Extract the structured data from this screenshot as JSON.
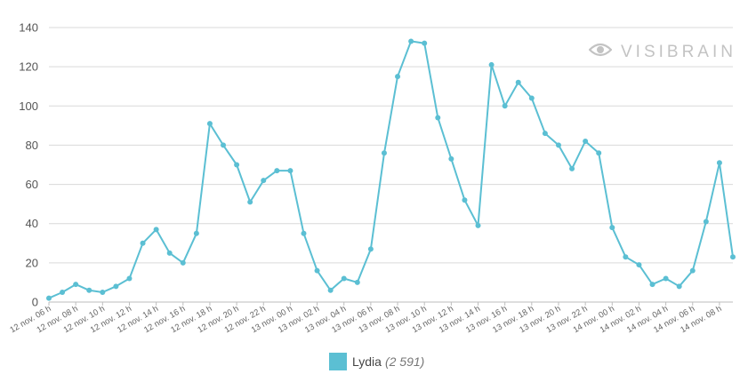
{
  "watermark": {
    "text": "VISIBRAIN",
    "icon": "eye-icon"
  },
  "colors": {
    "series": "#5bbfd3",
    "grid": "#d9d9d9"
  },
  "legend": {
    "name": "Lydia",
    "total": "(2 591)"
  },
  "chart_data": {
    "type": "line",
    "title": "",
    "xlabel": "",
    "ylabel": "",
    "ylim": [
      0,
      140
    ],
    "yticks": [
      0,
      20,
      40,
      60,
      80,
      100,
      120,
      140
    ],
    "grid": true,
    "legend_position": "bottom",
    "x_tick_labels": [
      "12 nov. 06 h",
      "12 nov. 08 h",
      "12 nov. 10 h",
      "12 nov. 12 h",
      "12 nov. 14 h",
      "12 nov. 16 h",
      "12 nov. 18 h",
      "12 nov. 20 h",
      "12 nov. 22 h",
      "13 nov. 00 h",
      "13 nov. 02 h",
      "13 nov. 04 h",
      "13 nov. 06 h",
      "13 nov. 08 h",
      "13 nov. 10 h",
      "13 nov. 12 h",
      "13 nov. 14 h",
      "13 nov. 16 h",
      "13 nov. 18 h",
      "13 nov. 20 h",
      "13 nov. 22 h",
      "14 nov. 00 h",
      "14 nov. 02 h",
      "14 nov. 04 h",
      "14 nov. 06 h",
      "14 nov. 08 h"
    ],
    "series": [
      {
        "name": "Lydia",
        "values": [
          2,
          5,
          9,
          6,
          5,
          8,
          12,
          30,
          37,
          25,
          20,
          35,
          91,
          80,
          70,
          51,
          62,
          67,
          67,
          35,
          16,
          6,
          12,
          10,
          27,
          76,
          115,
          133,
          132,
          94,
          73,
          52,
          39,
          121,
          100,
          112,
          104,
          86,
          80,
          68,
          82,
          76,
          38,
          23,
          19,
          9,
          12,
          8,
          16,
          41,
          71,
          23
        ]
      }
    ]
  }
}
